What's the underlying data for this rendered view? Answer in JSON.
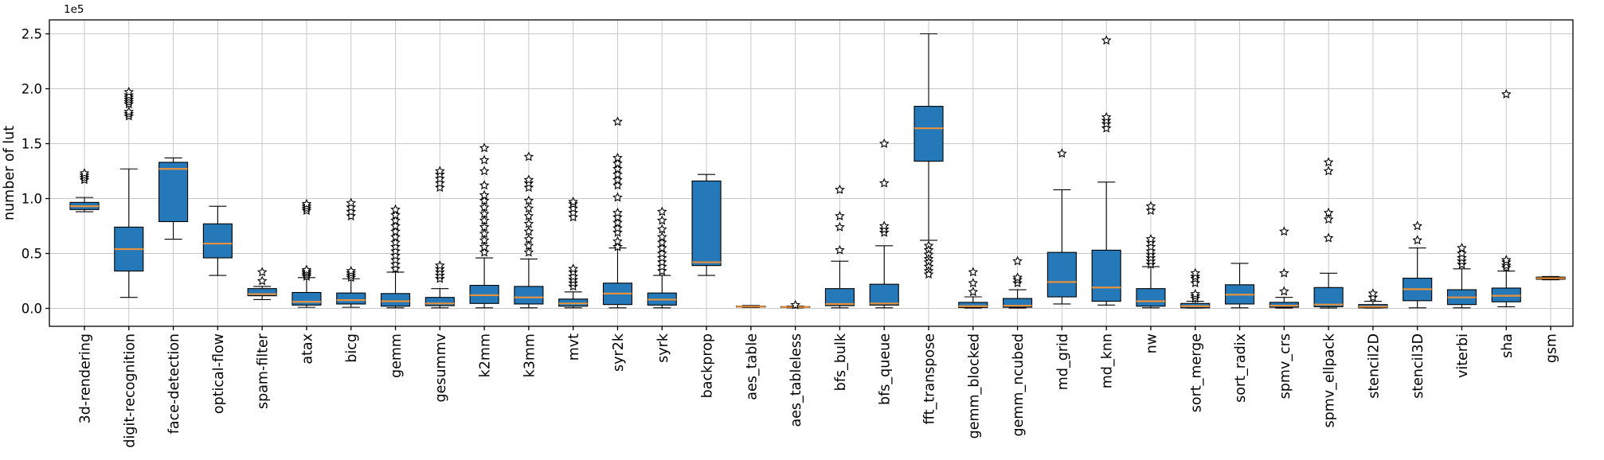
{
  "figure": {
    "ylabel": "number of lut",
    "offset_label": "1e5",
    "background": "#ffffff"
  },
  "chart_data": {
    "type": "boxplot",
    "title": "",
    "xlabel": "",
    "ylabel": "number of lut",
    "y_scale_label": "1e5",
    "grid": true,
    "legend": "none",
    "ylim": [
      -16000,
      263000
    ],
    "y_ticks": [
      0,
      50000,
      100000,
      150000,
      200000,
      250000
    ],
    "y_tick_labels": [
      "0.0",
      "0.5",
      "1.0",
      "1.5",
      "2.0",
      "2.5"
    ],
    "style": {
      "box_fill": "#2679b8",
      "box_edge": "#000000",
      "median_color": "#e8913c",
      "whisker_color": "#000000",
      "flier_fill": "#ffffff",
      "flier_edge": "#000000",
      "grid_color": "#c9c9c9",
      "spine_color": "#000000"
    },
    "categories": [
      "3d-rendering",
      "digit-recognition",
      "face-detection",
      "optical-flow",
      "spam-filter",
      "atax",
      "bicg",
      "gemm",
      "gesummv",
      "k2mm",
      "k3mm",
      "mvt",
      "syr2k",
      "syrk",
      "backprop",
      "aes_table",
      "aes_tableless",
      "bfs_bulk",
      "bfs_queue",
      "fft_transpose",
      "gemm_blocked",
      "gemm_ncubed",
      "md_grid",
      "md_knn",
      "nw",
      "sort_merge",
      "sort_radix",
      "spmv_crs",
      "spmv_ellpack",
      "stencil2D",
      "stencil3D",
      "viterbi",
      "sha",
      "gsm"
    ],
    "boxes": [
      {
        "label": "3d-rendering",
        "whislo": 88000,
        "q1": 90000,
        "med": 93000,
        "q3": 96500,
        "whishi": 101000,
        "fliers": [
          117000,
          119000,
          121000,
          123000
        ]
      },
      {
        "label": "digit-recognition",
        "whislo": 10000,
        "q1": 34000,
        "med": 54000,
        "q3": 74000,
        "whishi": 127000,
        "fliers": [
          175000,
          177000,
          179000,
          186000,
          188000,
          190000,
          192000,
          194000,
          197000
        ]
      },
      {
        "label": "face-detection",
        "whislo": 63000,
        "q1": 79000,
        "med": 127000,
        "q3": 133000,
        "whishi": 137000,
        "fliers": []
      },
      {
        "label": "optical-flow",
        "whislo": 30000,
        "q1": 46000,
        "med": 59000,
        "q3": 77000,
        "whishi": 93000,
        "fliers": []
      },
      {
        "label": "spam-filter",
        "whislo": 8000,
        "q1": 11500,
        "med": 13000,
        "q3": 18000,
        "whishi": 20000,
        "fliers": [
          25000,
          33000
        ]
      },
      {
        "label": "atax",
        "whislo": 1000,
        "q1": 3000,
        "med": 6000,
        "q3": 14500,
        "whishi": 28000,
        "fliers": [
          29000,
          30500,
          32000,
          33500,
          35000,
          89000,
          91000,
          93000,
          95000
        ]
      },
      {
        "label": "bicg",
        "whislo": 1000,
        "q1": 4000,
        "med": 7500,
        "q3": 14000,
        "whishi": 27000,
        "fliers": [
          28000,
          30000,
          32000,
          34000,
          84000,
          88000,
          92000,
          96000
        ]
      },
      {
        "label": "gemm",
        "whislo": 500,
        "q1": 2000,
        "med": 6500,
        "q3": 13500,
        "whishi": 33000,
        "fliers": [
          36000,
          40000,
          44000,
          48000,
          52000,
          56000,
          60000,
          65000,
          70000,
          75000,
          80000,
          85000,
          90000
        ]
      },
      {
        "label": "gesummv",
        "whislo": 500,
        "q1": 2500,
        "med": 4500,
        "q3": 10000,
        "whishi": 18000,
        "fliers": [
          27000,
          30000,
          33000,
          36000,
          39000,
          110000,
          114000,
          118000,
          122000,
          125000
        ]
      },
      {
        "label": "k2mm",
        "whislo": 500,
        "q1": 4500,
        "med": 12000,
        "q3": 21000,
        "whishi": 46000,
        "fliers": [
          51000,
          56000,
          62000,
          68000,
          74000,
          80000,
          86000,
          92000,
          98000,
          103000,
          112000,
          125000,
          135000,
          146000
        ]
      },
      {
        "label": "k3mm",
        "whislo": 500,
        "q1": 4000,
        "med": 10000,
        "q3": 20000,
        "whishi": 45000,
        "fliers": [
          51000,
          57000,
          63000,
          70000,
          77000,
          84000,
          91000,
          98000,
          110000,
          114000,
          117000,
          138000
        ]
      },
      {
        "label": "mvt",
        "whislo": 500,
        "q1": 2000,
        "med": 4500,
        "q3": 8500,
        "whishi": 15000,
        "fliers": [
          20000,
          23000,
          26000,
          29000,
          33000,
          36000,
          83000,
          87000,
          91000,
          95000,
          97000
        ]
      },
      {
        "label": "syr2k",
        "whislo": 500,
        "q1": 3500,
        "med": 13500,
        "q3": 23000,
        "whishi": 55000,
        "fliers": [
          56000,
          61000,
          69000,
          73000,
          78000,
          83000,
          87000,
          101000,
          112000,
          117000,
          122000,
          127000,
          132000,
          137000,
          170000
        ]
      },
      {
        "label": "syrk",
        "whislo": 500,
        "q1": 3000,
        "med": 8000,
        "q3": 14000,
        "whishi": 30000,
        "fliers": [
          34000,
          38000,
          42000,
          46000,
          50000,
          55000,
          60000,
          65000,
          72000,
          80000,
          88000
        ]
      },
      {
        "label": "backprop",
        "whislo": 30000,
        "q1": 39000,
        "med": 42000,
        "q3": 116000,
        "whishi": 122000,
        "fliers": []
      },
      {
        "label": "aes_table",
        "whislo": 800,
        "q1": 1200,
        "med": 1600,
        "q3": 2100,
        "whishi": 2600,
        "fliers": []
      },
      {
        "label": "aes_tableless",
        "whislo": 500,
        "q1": 900,
        "med": 1300,
        "q3": 1700,
        "whishi": 2100,
        "fliers": [
          3000
        ]
      },
      {
        "label": "bfs_bulk",
        "whislo": 500,
        "q1": 2500,
        "med": 4000,
        "q3": 18000,
        "whishi": 43000,
        "fliers": [
          53000,
          74000,
          84000,
          108000
        ]
      },
      {
        "label": "bfs_queue",
        "whislo": 500,
        "q1": 3000,
        "med": 4500,
        "q3": 22000,
        "whishi": 57000,
        "fliers": [
          69000,
          72000,
          75000,
          114000,
          150000
        ]
      },
      {
        "label": "fft_transpose",
        "whislo": 62000,
        "q1": 134000,
        "med": 164000,
        "q3": 184000,
        "whishi": 250000,
        "fliers": [
          57000,
          53000,
          49000,
          45000,
          42000,
          38000,
          34000,
          31000
        ]
      },
      {
        "label": "gemm_blocked",
        "whislo": 300,
        "q1": 800,
        "med": 2000,
        "q3": 5500,
        "whishi": 10500,
        "fliers": [
          15000,
          23000,
          33000
        ]
      },
      {
        "label": "gemm_ncubed",
        "whislo": 300,
        "q1": 1000,
        "med": 2500,
        "q3": 9000,
        "whishi": 17000,
        "fliers": [
          23000,
          26000,
          28000,
          43000
        ]
      },
      {
        "label": "md_grid",
        "whislo": 4000,
        "q1": 10500,
        "med": 24000,
        "q3": 51000,
        "whishi": 108000,
        "fliers": [
          141000
        ]
      },
      {
        "label": "md_knn",
        "whislo": 3000,
        "q1": 6500,
        "med": 19000,
        "q3": 53000,
        "whishi": 115000,
        "fliers": [
          164000,
          168000,
          171000,
          174000,
          244000
        ]
      },
      {
        "label": "nw",
        "whislo": 500,
        "q1": 2000,
        "med": 6500,
        "q3": 18000,
        "whishi": 38000,
        "fliers": [
          40000,
          43000,
          46000,
          49000,
          52000,
          56000,
          60000,
          63000,
          89000,
          93000
        ]
      },
      {
        "label": "sort_merge",
        "whislo": 300,
        "q1": 500,
        "med": 2000,
        "q3": 4500,
        "whishi": 6500,
        "fliers": [
          9000,
          11000,
          13000,
          23000,
          27000,
          29000,
          32000
        ]
      },
      {
        "label": "sort_radix",
        "whislo": 500,
        "q1": 4000,
        "med": 12500,
        "q3": 21500,
        "whishi": 41000,
        "fliers": []
      },
      {
        "label": "spmv_crs",
        "whislo": 300,
        "q1": 1000,
        "med": 2500,
        "q3": 5500,
        "whishi": 10000,
        "fliers": [
          15500,
          32000,
          70000
        ]
      },
      {
        "label": "spmv_ellpack",
        "whislo": 300,
        "q1": 1500,
        "med": 3500,
        "q3": 19000,
        "whishi": 32000,
        "fliers": [
          64000,
          81000,
          87000,
          125000,
          133000
        ]
      },
      {
        "label": "stencil2D",
        "whislo": 300,
        "q1": 500,
        "med": 1500,
        "q3": 3500,
        "whishi": 6500,
        "fliers": [
          10000,
          13500
        ]
      },
      {
        "label": "stencil3D",
        "whislo": 500,
        "q1": 7000,
        "med": 17500,
        "q3": 27500,
        "whishi": 55000,
        "fliers": [
          62000,
          75000
        ]
      },
      {
        "label": "viterbi",
        "whislo": 500,
        "q1": 3500,
        "med": 10000,
        "q3": 17000,
        "whishi": 36000,
        "fliers": [
          40000,
          43000,
          46000,
          50000,
          55000
        ]
      },
      {
        "label": "sha",
        "whislo": 1500,
        "q1": 6000,
        "med": 11500,
        "q3": 18500,
        "whishi": 34000,
        "fliers": [
          37000,
          39000,
          42000,
          44000,
          195000
        ]
      },
      {
        "label": "gsm",
        "whislo": 26000,
        "q1": 26500,
        "med": 27500,
        "q3": 28500,
        "whishi": 29000,
        "fliers": []
      }
    ]
  }
}
